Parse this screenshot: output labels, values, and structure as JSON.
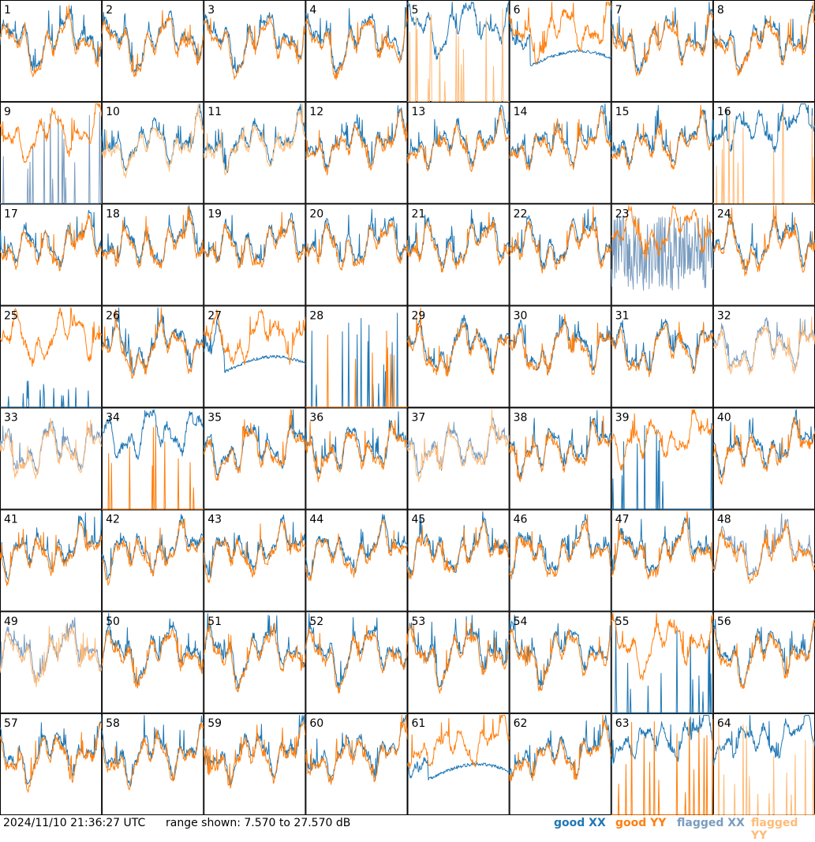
{
  "footer": {
    "timestamp": "2024/11/10 21:36:27 UTC",
    "range_text": "range shown: 7.570 to 27.570 dB"
  },
  "legend": {
    "good_xx": "good XX",
    "good_yy": "good YY",
    "flagged_xx": "flagged XX",
    "flagged_yy": "flagged YY"
  },
  "colors": {
    "good_xx": "#1f77b4",
    "good_yy": "#ff7f0e",
    "flagged_xx": "#7a9cbf",
    "flagged_yy": "#ffbb78"
  },
  "chart_data": {
    "type": "line",
    "ylim": [
      7.57,
      27.57
    ],
    "ylabel": "dB",
    "grid_columns": 8,
    "grid_rows": 8,
    "panels": [
      {
        "id": "1",
        "xx": "good",
        "yy": "good",
        "pattern": "normal"
      },
      {
        "id": "2",
        "xx": "good",
        "yy": "good",
        "pattern": "normal"
      },
      {
        "id": "3",
        "xx": "good",
        "yy": "good",
        "pattern": "normal"
      },
      {
        "id": "4",
        "xx": "good",
        "yy": "good",
        "pattern": "normal"
      },
      {
        "id": "5",
        "xx": "good",
        "yy": "flagged",
        "pattern": "spikes_yy"
      },
      {
        "id": "6",
        "xx": "good",
        "yy": "good",
        "pattern": "bump"
      },
      {
        "id": "7",
        "xx": "good",
        "yy": "good",
        "pattern": "normal"
      },
      {
        "id": "8",
        "xx": "good",
        "yy": "good",
        "pattern": "normal"
      },
      {
        "id": "9",
        "xx": "flagged",
        "yy": "good",
        "pattern": "spikes_xx"
      },
      {
        "id": "10",
        "xx": "good",
        "yy": "flagged",
        "pattern": "normal"
      },
      {
        "id": "11",
        "xx": "good",
        "yy": "flagged",
        "pattern": "normal"
      },
      {
        "id": "12",
        "xx": "good",
        "yy": "good",
        "pattern": "normal"
      },
      {
        "id": "13",
        "xx": "good",
        "yy": "good",
        "pattern": "normal"
      },
      {
        "id": "14",
        "xx": "good",
        "yy": "good",
        "pattern": "normal"
      },
      {
        "id": "15",
        "xx": "good",
        "yy": "good",
        "pattern": "normal"
      },
      {
        "id": "16",
        "xx": "good",
        "yy": "flagged",
        "pattern": "spikes_yy"
      },
      {
        "id": "17",
        "xx": "good",
        "yy": "good",
        "pattern": "normal"
      },
      {
        "id": "18",
        "xx": "good",
        "yy": "good",
        "pattern": "normal"
      },
      {
        "id": "19",
        "xx": "good",
        "yy": "good",
        "pattern": "normal"
      },
      {
        "id": "20",
        "xx": "good",
        "yy": "good",
        "pattern": "normal"
      },
      {
        "id": "21",
        "xx": "good",
        "yy": "good",
        "pattern": "normal"
      },
      {
        "id": "22",
        "xx": "good",
        "yy": "good",
        "pattern": "normal"
      },
      {
        "id": "23",
        "xx": "flagged",
        "yy": "good",
        "pattern": "noisy_xx"
      },
      {
        "id": "24",
        "xx": "good",
        "yy": "good",
        "pattern": "normal"
      },
      {
        "id": "25",
        "xx": "good",
        "yy": "good",
        "pattern": "spikes_xx_low"
      },
      {
        "id": "26",
        "xx": "good",
        "yy": "good",
        "pattern": "normal"
      },
      {
        "id": "27",
        "xx": "good",
        "yy": "good",
        "pattern": "bump"
      },
      {
        "id": "28",
        "xx": "good",
        "yy": "good",
        "pattern": "spikes_both"
      },
      {
        "id": "29",
        "xx": "good",
        "yy": "good",
        "pattern": "normal"
      },
      {
        "id": "30",
        "xx": "good",
        "yy": "good",
        "pattern": "normal"
      },
      {
        "id": "31",
        "xx": "good",
        "yy": "good",
        "pattern": "normal"
      },
      {
        "id": "32",
        "xx": "flagged",
        "yy": "flagged",
        "pattern": "normal"
      },
      {
        "id": "33",
        "xx": "flagged",
        "yy": "flagged",
        "pattern": "normal"
      },
      {
        "id": "34",
        "xx": "good",
        "yy": "good",
        "pattern": "spikes_yy"
      },
      {
        "id": "35",
        "xx": "good",
        "yy": "good",
        "pattern": "normal"
      },
      {
        "id": "36",
        "xx": "good",
        "yy": "good",
        "pattern": "normal"
      },
      {
        "id": "37",
        "xx": "flagged",
        "yy": "flagged",
        "pattern": "normal"
      },
      {
        "id": "38",
        "xx": "good",
        "yy": "good",
        "pattern": "normal"
      },
      {
        "id": "39",
        "xx": "good",
        "yy": "good",
        "pattern": "spikes_xx"
      },
      {
        "id": "40",
        "xx": "good",
        "yy": "good",
        "pattern": "normal"
      },
      {
        "id": "41",
        "xx": "good",
        "yy": "good",
        "pattern": "normal"
      },
      {
        "id": "42",
        "xx": "good",
        "yy": "good",
        "pattern": "normal"
      },
      {
        "id": "43",
        "xx": "good",
        "yy": "good",
        "pattern": "normal"
      },
      {
        "id": "44",
        "xx": "good",
        "yy": "good",
        "pattern": "normal"
      },
      {
        "id": "45",
        "xx": "good",
        "yy": "good",
        "pattern": "normal"
      },
      {
        "id": "46",
        "xx": "good",
        "yy": "good",
        "pattern": "normal"
      },
      {
        "id": "47",
        "xx": "good",
        "yy": "good",
        "pattern": "normal"
      },
      {
        "id": "48",
        "xx": "flagged",
        "yy": "good",
        "pattern": "normal"
      },
      {
        "id": "49",
        "xx": "flagged",
        "yy": "flagged",
        "pattern": "normal"
      },
      {
        "id": "50",
        "xx": "good",
        "yy": "good",
        "pattern": "normal"
      },
      {
        "id": "51",
        "xx": "good",
        "yy": "good",
        "pattern": "normal"
      },
      {
        "id": "52",
        "xx": "good",
        "yy": "good",
        "pattern": "normal"
      },
      {
        "id": "53",
        "xx": "good",
        "yy": "good",
        "pattern": "normal"
      },
      {
        "id": "54",
        "xx": "good",
        "yy": "good",
        "pattern": "normal"
      },
      {
        "id": "55",
        "xx": "good",
        "yy": "good",
        "pattern": "spikes_xx"
      },
      {
        "id": "56",
        "xx": "good",
        "yy": "good",
        "pattern": "normal"
      },
      {
        "id": "57",
        "xx": "good",
        "yy": "good",
        "pattern": "normal"
      },
      {
        "id": "58",
        "xx": "good",
        "yy": "good",
        "pattern": "normal"
      },
      {
        "id": "59",
        "xx": "good",
        "yy": "good",
        "pattern": "normal"
      },
      {
        "id": "60",
        "xx": "good",
        "yy": "good",
        "pattern": "normal"
      },
      {
        "id": "61",
        "xx": "good",
        "yy": "good",
        "pattern": "bump"
      },
      {
        "id": "62",
        "xx": "good",
        "yy": "good",
        "pattern": "normal"
      },
      {
        "id": "63",
        "xx": "good",
        "yy": "good",
        "pattern": "spikes_yy"
      },
      {
        "id": "64",
        "xx": "good",
        "yy": "flagged",
        "pattern": "spikes_yy"
      }
    ]
  }
}
